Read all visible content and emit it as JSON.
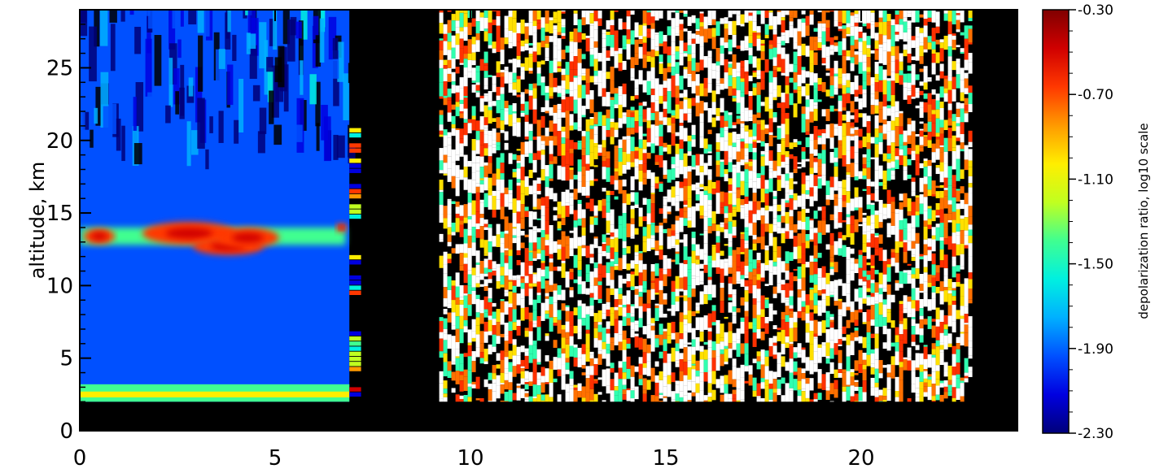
{
  "chart_data": {
    "type": "heatmap",
    "ylabel": "altitude, km",
    "xlim": [
      0,
      24
    ],
    "ylim": [
      0,
      29
    ],
    "x_ticks": [
      "0",
      "5",
      "10",
      "15",
      "20"
    ],
    "y_ticks": [
      "0",
      "5",
      "10",
      "15",
      "20",
      "25"
    ],
    "colorbar": {
      "label": "depolarization ratio, log10 scale",
      "range": [
        -2.3,
        -0.3
      ],
      "ticks": [
        "-0.30",
        "-0.70",
        "-1.10",
        "-1.50",
        "-1.90",
        "-2.30"
      ],
      "colors": [
        "#00007a",
        "#0000e0",
        "#0050ff",
        "#00b0ff",
        "#00f0e0",
        "#40ff90",
        "#c0ff20",
        "#ffee00",
        "#ff9a00",
        "#ff3800",
        "#d00000",
        "#800000"
      ]
    },
    "regions": [
      {
        "description_value": "background",
        "x": [
          0,
          6.9
        ],
        "y": [
          2.0,
          29.0
        ],
        "log10_depol": -1.95
      },
      {
        "description_value": "cirrus layer",
        "x": [
          0.3,
          6.8
        ],
        "y": [
          11.8,
          14.5
        ],
        "log10_depol": -0.75
      },
      {
        "description_value": "boundary layer",
        "x": [
          0,
          6.9
        ],
        "y": [
          2.0,
          3.2
        ],
        "log10_depol": -1.4
      },
      {
        "description_value": "noisy data",
        "x": [
          9.2,
          22.8
        ],
        "y": [
          2.0,
          29.0
        ],
        "log10_depol": -0.6
      }
    ],
    "no_data_color": "#000000",
    "grid": false
  }
}
